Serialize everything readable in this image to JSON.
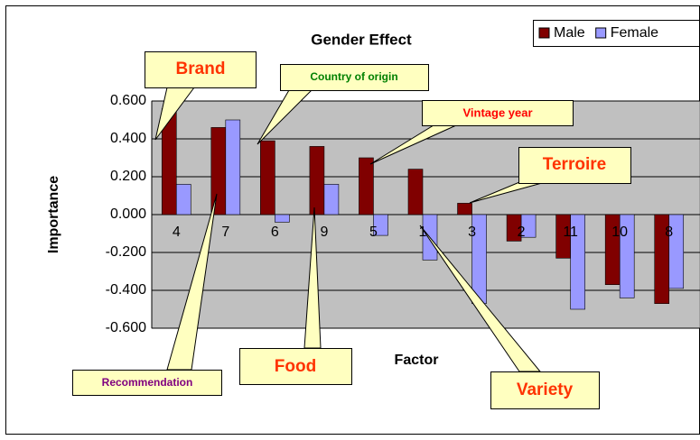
{
  "chart_data": {
    "type": "bar",
    "title": "Gender Effect",
    "x_label": "Factor",
    "y_label": "Importance",
    "categories": [
      "4",
      "7",
      "6",
      "9",
      "5",
      "1",
      "3",
      "2",
      "11",
      "10",
      "8"
    ],
    "series": [
      {
        "name": "Male",
        "color": "#800000",
        "values": [
          0.56,
          0.46,
          0.39,
          0.36,
          0.3,
          0.24,
          0.06,
          -0.14,
          -0.23,
          -0.37,
          -0.47
        ]
      },
      {
        "name": "Female",
        "color": "#9999ff",
        "values": [
          0.16,
          0.5,
          -0.04,
          0.16,
          -0.11,
          -0.24,
          -0.47,
          -0.12,
          -0.5,
          -0.44,
          -0.39
        ]
      }
    ],
    "ylim": [
      -0.6,
      0.6
    ],
    "yticks": [
      {
        "value": -0.6,
        "label": "-0.600"
      },
      {
        "value": -0.4,
        "label": "-0.400"
      },
      {
        "value": -0.2,
        "label": "-0.200"
      },
      {
        "value": 0,
        "label": "0.000"
      },
      {
        "value": 0.2,
        "label": "0.200"
      },
      {
        "value": 0.4,
        "label": "0.400"
      },
      {
        "value": 0.6,
        "label": "0.600"
      }
    ],
    "grid": true,
    "legend": "top-right",
    "plot_background": "#c0c0c0",
    "annotations": [
      "Brand",
      "Country of origin",
      "Vintage year",
      "Terroire",
      "Recommendation",
      "Food",
      "Variety"
    ]
  }
}
